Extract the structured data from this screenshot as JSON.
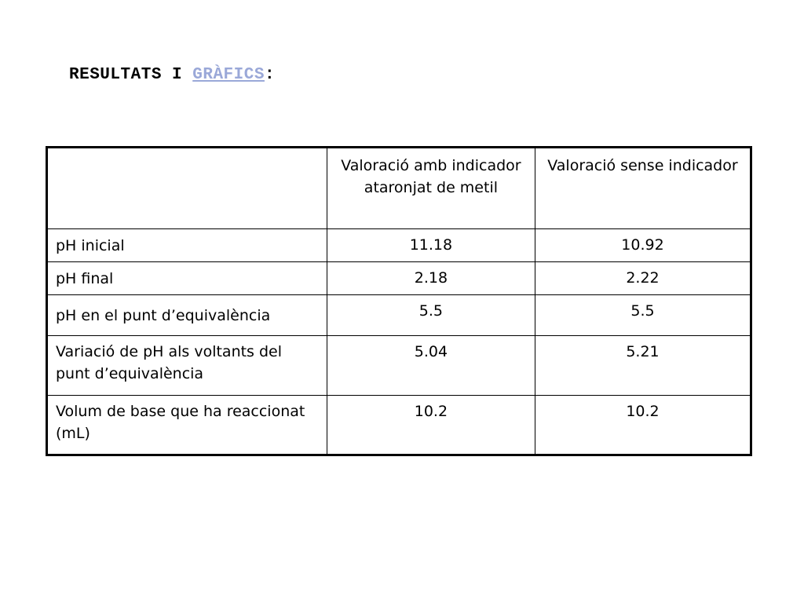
{
  "heading": {
    "prefix": "RESULTATS I ",
    "link": "GRÀFICS",
    "suffix": ":"
  },
  "table": {
    "headers": [
      "",
      "Valoració amb indicador ataronjat de metil",
      "Valoració sense indicador"
    ],
    "rows": [
      {
        "label": "pH inicial",
        "with_indicator": "11.18",
        "without_indicator": "10.92"
      },
      {
        "label": "pH final",
        "with_indicator": "2.18",
        "without_indicator": "2.22"
      },
      {
        "label": "pH en el punt d’equivalència",
        "with_indicator": "5.5",
        "without_indicator": "5.5"
      },
      {
        "label": "Variació de pH als voltants del punt d’equivalència",
        "with_indicator": "5.04",
        "without_indicator": "5.21"
      },
      {
        "label": "Volum de base que ha reaccionat (mL)",
        "with_indicator": "10.2",
        "without_indicator": "10.2"
      }
    ]
  },
  "colors": {
    "text": "#000000",
    "link": "#9aa8d8",
    "background": "#ffffff",
    "border": "#000000"
  }
}
